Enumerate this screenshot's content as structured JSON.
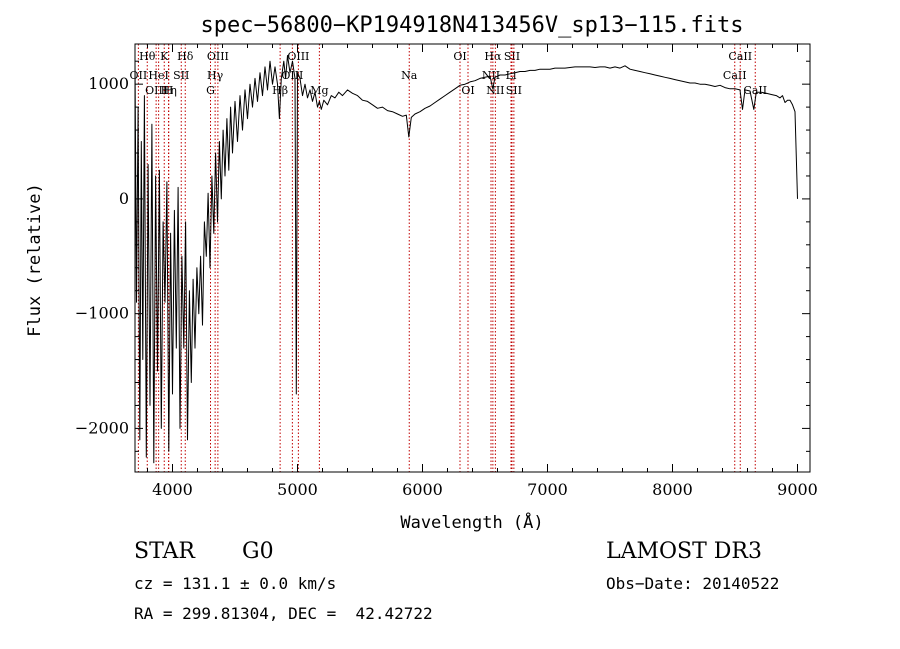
{
  "chart_data": {
    "type": "line",
    "title": "spec−56800−KP194918N413456V_sp13−115.fits",
    "xlabel": "Wavelength (Å)",
    "ylabel": "Flux (relative)",
    "xlim": [
      3700,
      9100
    ],
    "ylim": [
      -2380,
      1350
    ],
    "xticks": [
      {
        "value": 4000,
        "label": "4000"
      },
      {
        "value": 5000,
        "label": "5000"
      },
      {
        "value": 6000,
        "label": "6000"
      },
      {
        "value": 7000,
        "label": "7000"
      },
      {
        "value": 8000,
        "label": "8000"
      },
      {
        "value": 9000,
        "label": "9000"
      }
    ],
    "yticks": [
      {
        "value": 1000,
        "label": "1000"
      },
      {
        "value": 0,
        "label": "0"
      },
      {
        "value": -1000,
        "label": "−1000"
      },
      {
        "value": -2000,
        "label": "−2000"
      }
    ],
    "series": [
      {
        "color": "#000000",
        "points": [
          [
            3700,
            1200
          ],
          [
            3712,
            -900
          ],
          [
            3725,
            800
          ],
          [
            3738,
            -2100
          ],
          [
            3750,
            500
          ],
          [
            3762,
            -1400
          ],
          [
            3775,
            900
          ],
          [
            3790,
            -2250
          ],
          [
            3805,
            300
          ],
          [
            3820,
            -1800
          ],
          [
            3835,
            650
          ],
          [
            3850,
            -2300
          ],
          [
            3865,
            200
          ],
          [
            3880,
            -1500
          ],
          [
            3895,
            250
          ],
          [
            3910,
            -2000
          ],
          [
            3925,
            -200
          ],
          [
            3940,
            -900
          ],
          [
            3955,
            150
          ],
          [
            3970,
            -2200
          ],
          [
            3985,
            -300
          ],
          [
            4000,
            -1700
          ],
          [
            4015,
            -100
          ],
          [
            4030,
            -1300
          ],
          [
            4045,
            100
          ],
          [
            4060,
            -2000
          ],
          [
            4075,
            -500
          ],
          [
            4090,
            -1300
          ],
          [
            4105,
            -200
          ],
          [
            4120,
            -2100
          ],
          [
            4135,
            -800
          ],
          [
            4150,
            -1600
          ],
          [
            4165,
            -700
          ],
          [
            4180,
            -1300
          ],
          [
            4195,
            -600
          ],
          [
            4210,
            -1000
          ],
          [
            4225,
            -500
          ],
          [
            4240,
            -1100
          ],
          [
            4255,
            -200
          ],
          [
            4270,
            -500
          ],
          [
            4285,
            50
          ],
          [
            4300,
            -600
          ],
          [
            4315,
            200
          ],
          [
            4330,
            -300
          ],
          [
            4345,
            400
          ],
          [
            4360,
            -200
          ],
          [
            4375,
            500
          ],
          [
            4390,
            0
          ],
          [
            4405,
            600
          ],
          [
            4420,
            200
          ],
          [
            4435,
            700
          ],
          [
            4450,
            250
          ],
          [
            4465,
            800
          ],
          [
            4480,
            400
          ],
          [
            4500,
            850
          ],
          [
            4520,
            500
          ],
          [
            4540,
            900
          ],
          [
            4560,
            600
          ],
          [
            4580,
            950
          ],
          [
            4600,
            700
          ],
          [
            4620,
            1000
          ],
          [
            4640,
            800
          ],
          [
            4660,
            1050
          ],
          [
            4680,
            850
          ],
          [
            4700,
            1100
          ],
          [
            4720,
            900
          ],
          [
            4740,
            1150
          ],
          [
            4760,
            950
          ],
          [
            4780,
            1200
          ],
          [
            4800,
            1000
          ],
          [
            4820,
            1150
          ],
          [
            4840,
            1000
          ],
          [
            4855,
            700
          ],
          [
            4870,
            1050
          ],
          [
            4890,
            1200
          ],
          [
            4905,
            1050
          ],
          [
            4920,
            1250
          ],
          [
            4940,
            1100
          ],
          [
            4960,
            1200
          ],
          [
            4980,
            1050
          ],
          [
            4990,
            -1700
          ],
          [
            5000,
            1100
          ],
          [
            5020,
            1050
          ],
          [
            5040,
            900
          ],
          [
            5060,
            1000
          ],
          [
            5080,
            880
          ],
          [
            5100,
            950
          ],
          [
            5120,
            850
          ],
          [
            5140,
            930
          ],
          [
            5160,
            800
          ],
          [
            5175,
            850
          ],
          [
            5190,
            780
          ],
          [
            5210,
            860
          ],
          [
            5240,
            820
          ],
          [
            5270,
            900
          ],
          [
            5300,
            880
          ],
          [
            5330,
            930
          ],
          [
            5360,
            900
          ],
          [
            5400,
            950
          ],
          [
            5440,
            920
          ],
          [
            5480,
            900
          ],
          [
            5520,
            860
          ],
          [
            5560,
            850
          ],
          [
            5600,
            820
          ],
          [
            5640,
            790
          ],
          [
            5680,
            800
          ],
          [
            5720,
            770
          ],
          [
            5760,
            760
          ],
          [
            5800,
            740
          ],
          [
            5840,
            720
          ],
          [
            5870,
            730
          ],
          [
            5890,
            540
          ],
          [
            5910,
            710
          ],
          [
            5940,
            740
          ],
          [
            5980,
            760
          ],
          [
            6020,
            790
          ],
          [
            6060,
            810
          ],
          [
            6100,
            840
          ],
          [
            6140,
            870
          ],
          [
            6180,
            900
          ],
          [
            6220,
            930
          ],
          [
            6260,
            960
          ],
          [
            6300,
            990
          ],
          [
            6340,
            1000
          ],
          [
            6380,
            1020
          ],
          [
            6420,
            1030
          ],
          [
            6460,
            1050
          ],
          [
            6500,
            1060
          ],
          [
            6540,
            1070
          ],
          [
            6562,
            960
          ],
          [
            6580,
            1060
          ],
          [
            6620,
            1080
          ],
          [
            6660,
            1080
          ],
          [
            6700,
            1090
          ],
          [
            6740,
            1100
          ],
          [
            6780,
            1110
          ],
          [
            6820,
            1110
          ],
          [
            6860,
            1120
          ],
          [
            6900,
            1120
          ],
          [
            6940,
            1130
          ],
          [
            6980,
            1130
          ],
          [
            7020,
            1130
          ],
          [
            7060,
            1140
          ],
          [
            7100,
            1140
          ],
          [
            7140,
            1140
          ],
          [
            7180,
            1145
          ],
          [
            7220,
            1150
          ],
          [
            7260,
            1150
          ],
          [
            7300,
            1150
          ],
          [
            7340,
            1150
          ],
          [
            7380,
            1145
          ],
          [
            7420,
            1150
          ],
          [
            7460,
            1150
          ],
          [
            7500,
            1140
          ],
          [
            7540,
            1150
          ],
          [
            7580,
            1140
          ],
          [
            7620,
            1160
          ],
          [
            7660,
            1130
          ],
          [
            7700,
            1120
          ],
          [
            7740,
            1110
          ],
          [
            7780,
            1100
          ],
          [
            7820,
            1090
          ],
          [
            7860,
            1080
          ],
          [
            7900,
            1070
          ],
          [
            7940,
            1060
          ],
          [
            7980,
            1050
          ],
          [
            8020,
            1040
          ],
          [
            8060,
            1030
          ],
          [
            8100,
            1020
          ],
          [
            8140,
            1010
          ],
          [
            8180,
            1010
          ],
          [
            8220,
            1000
          ],
          [
            8260,
            1000
          ],
          [
            8300,
            990
          ],
          [
            8340,
            980
          ],
          [
            8380,
            990
          ],
          [
            8420,
            970
          ],
          [
            8460,
            960
          ],
          [
            8500,
            960
          ],
          [
            8540,
            950
          ],
          [
            8560,
            780
          ],
          [
            8580,
            950
          ],
          [
            8620,
            940
          ],
          [
            8650,
            780
          ],
          [
            8670,
            930
          ],
          [
            8710,
            930
          ],
          [
            8750,
            920
          ],
          [
            8790,
            910
          ],
          [
            8830,
            900
          ],
          [
            8860,
            880
          ],
          [
            8880,
            900
          ],
          [
            8900,
            840
          ],
          [
            8920,
            860
          ],
          [
            8940,
            860
          ],
          [
            8960,
            820
          ],
          [
            8980,
            760
          ],
          [
            9000,
            0
          ]
        ]
      }
    ],
    "line_markers": [
      {
        "label": "OII",
        "x": 3727,
        "row": 2
      },
      {
        "label": "Hθ",
        "x": 3798,
        "row": 1
      },
      {
        "label": "OIII",
        "x": 3869,
        "row": 3
      },
      {
        "label": "HeI",
        "x": 3889,
        "row": 2
      },
      {
        "label": "K",
        "x": 3934,
        "row": 1
      },
      {
        "label": "Hη",
        "x": 3970,
        "row": 3
      },
      {
        "label": "H",
        "x": 3968,
        "row": 3
      },
      {
        "label": "SII",
        "x": 4070,
        "row": 2
      },
      {
        "label": "Hδ",
        "x": 4102,
        "row": 1
      },
      {
        "label": "G",
        "x": 4304,
        "row": 3
      },
      {
        "label": "Hγ",
        "x": 4341,
        "row": 2
      },
      {
        "label": "OIII",
        "x": 4363,
        "row": 1
      },
      {
        "label": "Hβ",
        "x": 4861,
        "row": 3
      },
      {
        "label": "OIII",
        "x": 4959,
        "row": 2
      },
      {
        "label": "OIII",
        "x": 5007,
        "row": 1
      },
      {
        "label": "Mg",
        "x": 5175,
        "row": 3
      },
      {
        "label": "Na",
        "x": 5894,
        "row": 2
      },
      {
        "label": "OI",
        "x": 6300,
        "row": 1
      },
      {
        "label": "OI",
        "x": 6364,
        "row": 3
      },
      {
        "label": "NII",
        "x": 6548,
        "row": 2
      },
      {
        "label": "Hα",
        "x": 6563,
        "row": 1
      },
      {
        "label": "NII",
        "x": 6583,
        "row": 3
      },
      {
        "label": "Li",
        "x": 6708,
        "row": 2
      },
      {
        "label": "SII",
        "x": 6716,
        "row": 1
      },
      {
        "label": "SII",
        "x": 6731,
        "row": 3
      },
      {
        "label": "CaII",
        "x": 8498,
        "row": 2
      },
      {
        "label": "CaII",
        "x": 8542,
        "row": 1
      },
      {
        "label": "CaII",
        "x": 8662,
        "row": 3
      }
    ],
    "marker_color": "#c00000",
    "grid": false,
    "legend": "none"
  },
  "info": {
    "object_class": "STAR",
    "subclass": "G0",
    "survey": "LAMOST DR3",
    "cz": "cz = 131.1 ± 0.0 km/s",
    "obs_date": "Obs−Date: 20140522",
    "coords": "RA = 299.81304, DEC =  42.42722"
  }
}
